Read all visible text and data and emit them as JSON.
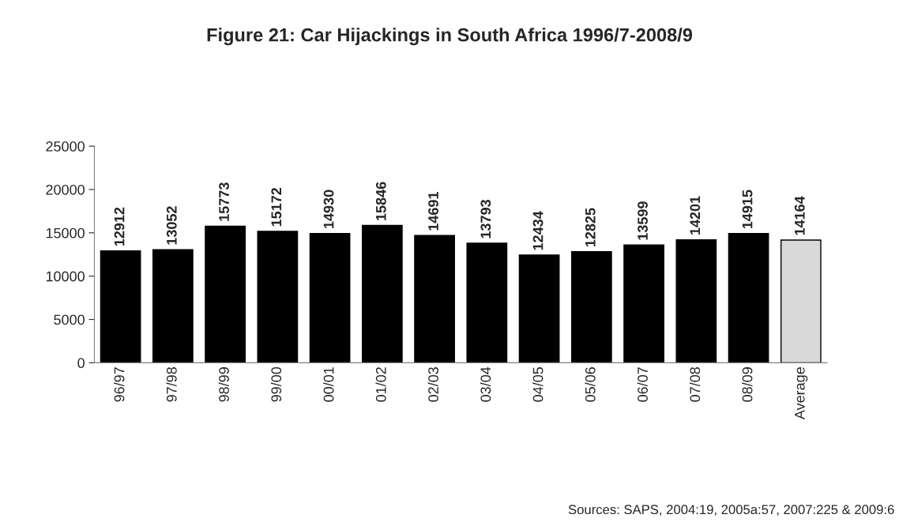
{
  "chart_data": {
    "type": "bar",
    "title": "Figure 21: Car Hijackings in South Africa 1996/7-2008/9",
    "categories": [
      "96/97",
      "97/98",
      "98/99",
      "99/00",
      "00/01",
      "01/02",
      "02/03",
      "03/04",
      "04/05",
      "05/06",
      "06/07",
      "07/08",
      "08/09",
      "Average"
    ],
    "values": [
      12912,
      13052,
      15773,
      15172,
      14930,
      15846,
      14691,
      13793,
      12434,
      12825,
      13599,
      14201,
      14915,
      14164
    ],
    "colors": [
      "#000000",
      "#000000",
      "#000000",
      "#000000",
      "#000000",
      "#000000",
      "#000000",
      "#000000",
      "#000000",
      "#000000",
      "#000000",
      "#000000",
      "#000000",
      "#d9d9d9"
    ],
    "ylim": [
      0,
      25000
    ],
    "yticks": [
      0,
      5000,
      10000,
      15000,
      20000,
      25000
    ],
    "grid": false,
    "legend": false,
    "data_labels": true,
    "annotations": [
      "Sources: SAPS, 2004:19, 2005a:57, 2007:225 & 2009:6"
    ]
  }
}
